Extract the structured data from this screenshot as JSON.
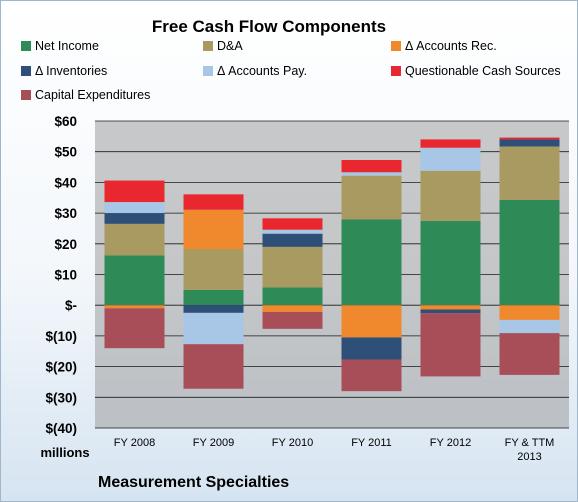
{
  "chart_data": {
    "type": "bar",
    "stacked": true,
    "title": "Free Cash Flow Components",
    "unit_label": "millions",
    "company": "Measurement Specialties",
    "categories": [
      [
        "FY 2008"
      ],
      [
        "FY 2009"
      ],
      [
        "FY 2010"
      ],
      [
        "FY 2011"
      ],
      [
        "FY 2012"
      ],
      [
        "FY & TTM",
        "2013"
      ]
    ],
    "ylim": [
      -40,
      60
    ],
    "yticks": [
      {
        "value": 60,
        "label": "$60"
      },
      {
        "value": 50,
        "label": "$50"
      },
      {
        "value": 40,
        "label": "$40"
      },
      {
        "value": 30,
        "label": "$30"
      },
      {
        "value": 20,
        "label": "$20"
      },
      {
        "value": 10,
        "label": "$10"
      },
      {
        "value": 0,
        "label": "$-"
      },
      {
        "value": -10,
        "label": "$(10)"
      },
      {
        "value": -20,
        "label": "$(20)"
      },
      {
        "value": -30,
        "label": "$(30)"
      },
      {
        "value": -40,
        "label": "$(40)"
      }
    ],
    "grid": true,
    "legend_position": "top",
    "series": [
      {
        "name": "Net Income",
        "color": "#2e8b57",
        "values": [
          16.2,
          5.0,
          5.8,
          28.0,
          27.5,
          34.3
        ]
      },
      {
        "name": "D&A",
        "color": "#a89a60",
        "values": [
          10.3,
          13.3,
          13.2,
          14.2,
          16.3,
          17.4
        ]
      },
      {
        "name": "Δ Accounts Rec.",
        "color": "#f0882e",
        "values": [
          -1.0,
          12.8,
          -2.2,
          -10.5,
          -1.4,
          -4.8
        ]
      },
      {
        "name": "Δ Inventories",
        "color": "#2e4f78",
        "values": [
          3.5,
          -2.5,
          4.3,
          -7.2,
          -1.2,
          2.3
        ]
      },
      {
        "name": "Δ Accounts Pay.",
        "color": "#a8c6e5",
        "values": [
          3.6,
          -10.2,
          1.3,
          1.1,
          7.5,
          -4.3
        ]
      },
      {
        "name": "Questionable Cash Sources",
        "color": "#e8282e",
        "values": [
          7.0,
          5.0,
          3.7,
          4.0,
          2.7,
          0.6
        ]
      },
      {
        "name": "Capital Expenditures",
        "color": "#a84e58",
        "values": [
          -13.0,
          -14.5,
          -5.5,
          -10.3,
          -20.6,
          -13.6
        ]
      }
    ]
  }
}
